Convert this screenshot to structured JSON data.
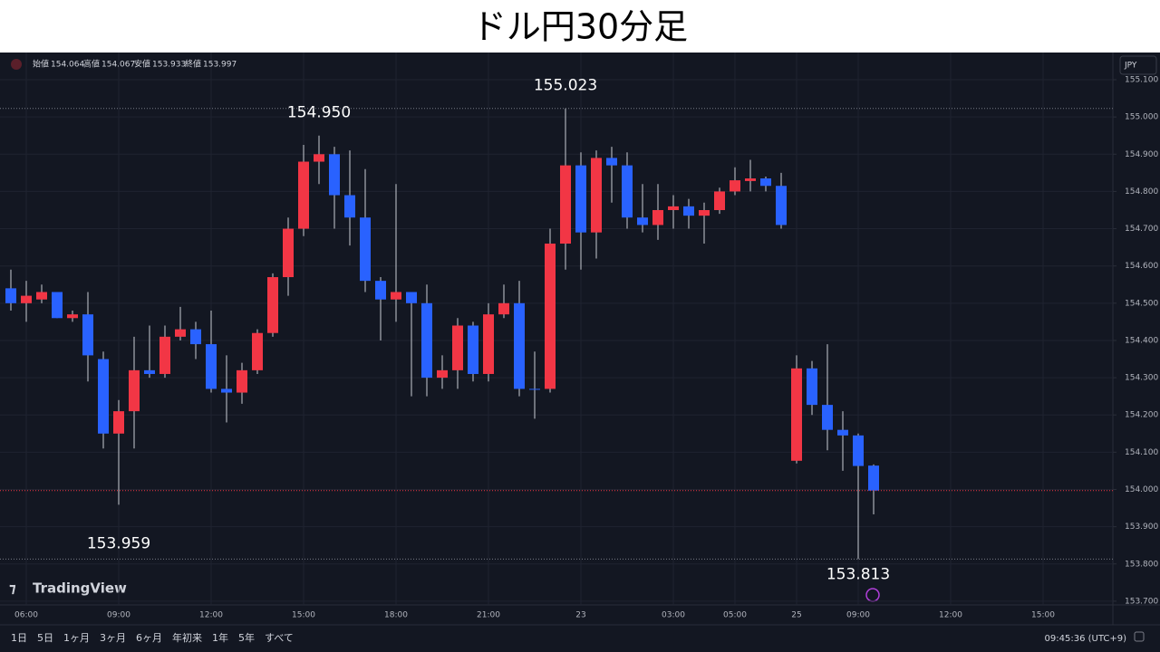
{
  "chart_data": {
    "type": "candlestick",
    "title": "ドル円30分足",
    "watermark": "TradingView",
    "currency": "JPY",
    "ohlc_legend": [
      {
        "label": "始値",
        "value": 154.064
      },
      {
        "label": "高値",
        "value": 154.067
      },
      {
        "label": "安値",
        "value": 153.933
      },
      {
        "label": "終値",
        "value": 153.997
      }
    ],
    "categories": [
      null,
      "06:00",
      null,
      null,
      null,
      null,
      null,
      "09:00",
      null,
      null,
      null,
      null,
      null,
      "12:00",
      null,
      null,
      null,
      null,
      null,
      "15:00",
      null,
      null,
      null,
      null,
      null,
      "18:00",
      null,
      null,
      null,
      null,
      null,
      "21:00",
      null,
      null,
      null,
      null,
      null,
      "23",
      null,
      null,
      null,
      null,
      null,
      "03:00",
      null,
      null,
      null,
      "05:00",
      null,
      null,
      null,
      "25",
      null,
      null,
      null,
      "09:00",
      null,
      null,
      null,
      null,
      null,
      "12:00",
      null,
      null,
      null,
      null,
      null,
      "15:00"
    ],
    "open": [
      154.54,
      154.5,
      154.51,
      154.53,
      154.46,
      154.47,
      154.35,
      154.15,
      154.21,
      154.32,
      154.31,
      154.41,
      154.43,
      154.39,
      154.27,
      154.26,
      154.32,
      154.42,
      154.57,
      154.7,
      154.88,
      154.9,
      154.79,
      154.73,
      154.56,
      154.51,
      154.53,
      154.5,
      154.3,
      154.32,
      154.44,
      154.31,
      154.47,
      154.5,
      154.27,
      154.27,
      154.66,
      154.87,
      154.69,
      154.89,
      154.87,
      154.73,
      154.71,
      154.75,
      154.76,
      154.735,
      154.75,
      154.8,
      154.828,
      154.835,
      154.815,
      154.077,
      154.325,
      154.227,
      154.16,
      154.145,
      154.064,
      null,
      null,
      null,
      null,
      null,
      null,
      null,
      null,
      null,
      null,
      null
    ],
    "high": [
      154.59,
      154.56,
      154.55,
      154.53,
      154.48,
      154.53,
      154.37,
      154.24,
      154.41,
      154.44,
      154.44,
      154.49,
      154.45,
      154.48,
      154.36,
      154.34,
      154.43,
      154.58,
      154.73,
      154.925,
      154.95,
      154.92,
      154.91,
      154.86,
      154.57,
      154.82,
      154.53,
      154.55,
      154.36,
      154.46,
      154.45,
      154.5,
      154.55,
      154.56,
      154.37,
      154.7,
      155.023,
      154.905,
      154.91,
      154.92,
      154.905,
      154.82,
      154.82,
      154.79,
      154.78,
      154.77,
      154.81,
      154.865,
      154.885,
      154.84,
      154.85,
      154.36,
      154.345,
      154.39,
      154.21,
      154.15,
      154.067,
      null,
      null,
      null,
      null,
      null,
      null,
      null,
      null,
      null,
      null,
      null
    ],
    "low": [
      154.48,
      154.45,
      154.5,
      154.46,
      154.45,
      154.29,
      154.11,
      153.959,
      154.11,
      154.3,
      154.3,
      154.4,
      154.35,
      154.26,
      154.18,
      154.23,
      154.31,
      154.41,
      154.52,
      154.68,
      154.82,
      154.7,
      154.655,
      154.53,
      154.4,
      154.45,
      154.25,
      154.25,
      154.27,
      154.27,
      154.29,
      154.29,
      154.46,
      154.25,
      154.19,
      154.26,
      154.59,
      154.59,
      154.62,
      154.77,
      154.7,
      154.69,
      154.67,
      154.7,
      154.7,
      154.66,
      154.74,
      154.79,
      154.8,
      154.8,
      154.7,
      154.07,
      154.2,
      154.105,
      154.05,
      153.813,
      153.933,
      null,
      null,
      null,
      null,
      null,
      null,
      null,
      null,
      null,
      null,
      null
    ],
    "close": [
      154.5,
      154.52,
      154.53,
      154.46,
      154.47,
      154.36,
      154.15,
      154.21,
      154.32,
      154.31,
      154.41,
      154.43,
      154.39,
      154.27,
      154.26,
      154.32,
      154.42,
      154.57,
      154.7,
      154.88,
      154.9,
      154.79,
      154.73,
      154.56,
      154.51,
      154.53,
      154.5,
      154.3,
      154.32,
      154.44,
      154.31,
      154.47,
      154.5,
      154.27,
      154.268,
      154.66,
      154.87,
      154.69,
      154.89,
      154.87,
      154.73,
      154.71,
      154.75,
      154.76,
      154.735,
      154.75,
      154.8,
      154.83,
      154.835,
      154.815,
      154.71,
      154.325,
      154.227,
      154.16,
      154.145,
      154.063,
      153.997,
      null,
      null,
      null,
      null,
      null,
      null,
      null,
      null,
      null,
      null,
      null
    ],
    "up_color": "#f23645",
    "down_color": "#2962ff",
    "wick_color": "#c9ccd4",
    "grid": true,
    "ylim": [
      153.69,
      155.173
    ],
    "yticks": [
      {
        "value": 153.7,
        "label": "153.700"
      },
      {
        "value": 153.8,
        "label": "153.800"
      },
      {
        "value": 153.9,
        "label": "153.900"
      },
      {
        "value": 154.0,
        "label": "154.000"
      },
      {
        "value": 154.1,
        "label": "154.100"
      },
      {
        "value": 154.2,
        "label": "154.200"
      },
      {
        "value": 154.3,
        "label": "154.300"
      },
      {
        "value": 154.4,
        "label": "154.400"
      },
      {
        "value": 154.5,
        "label": "154.500"
      },
      {
        "value": 154.6,
        "label": "154.600"
      },
      {
        "value": 154.7,
        "label": "154.700"
      },
      {
        "value": 154.8,
        "label": "154.800"
      },
      {
        "value": 154.9,
        "label": "154.900"
      },
      {
        "value": 155.0,
        "label": "155.000"
      },
      {
        "value": 155.1,
        "label": "155.100"
      }
    ],
    "annotations": [
      {
        "value": 154.95,
        "label": "154.950"
      },
      {
        "value": 155.023,
        "label": "155.023"
      },
      {
        "value": 153.959,
        "label": "153.959"
      },
      {
        "value": 153.813,
        "label": "153.813"
      }
    ],
    "ranges": [
      "1日",
      "5日",
      "1ヶ月",
      "3ヶ月",
      "6ヶ月",
      "年初来",
      "1年",
      "5年",
      "すべて"
    ],
    "clock": "09:45:36 (UTC+9)"
  }
}
